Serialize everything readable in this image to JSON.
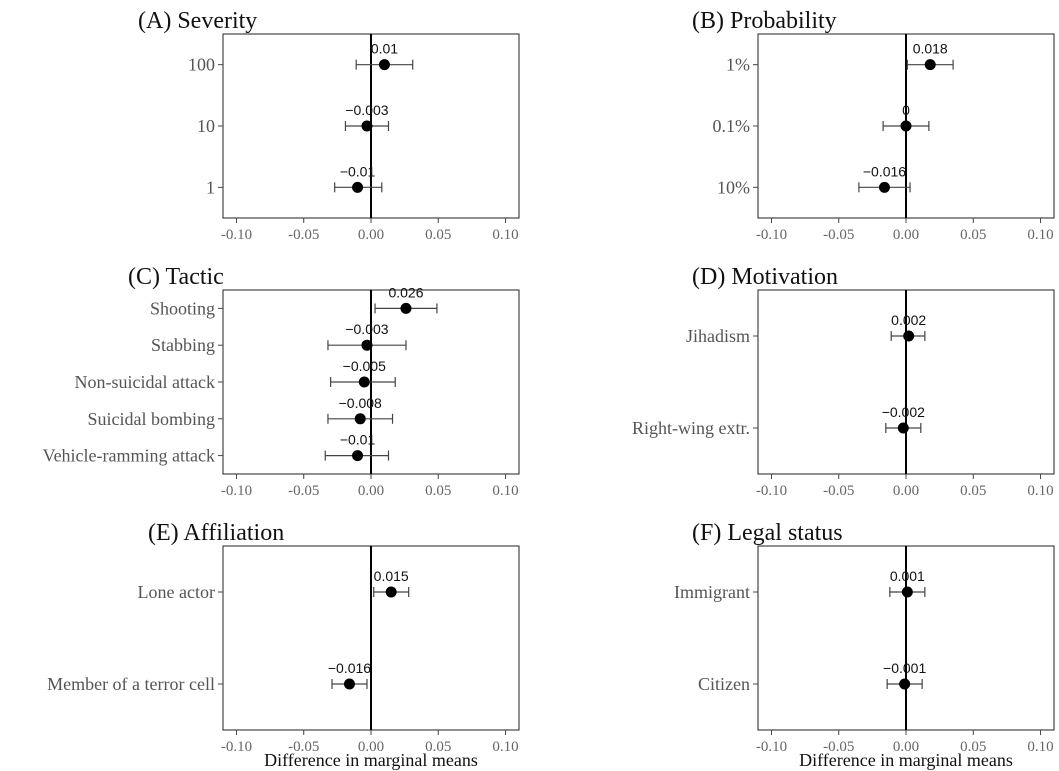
{
  "chart_data": [
    {
      "type": "scatter",
      "title": "(A) Severity",
      "xlabel": "",
      "xlim": [
        -0.11,
        0.11
      ],
      "xticks": [
        -0.1,
        -0.05,
        0.0,
        0.05,
        0.1
      ],
      "xtick_labels": [
        "-0.10",
        "-0.05",
        "0.00",
        "0.05",
        "0.10"
      ],
      "categories": [
        "100",
        "10",
        "1"
      ],
      "values": [
        0.01,
        -0.003,
        -0.01
      ],
      "ci_low": [
        -0.011,
        -0.019,
        -0.027
      ],
      "ci_high": [
        0.031,
        0.013,
        0.008
      ],
      "value_labels": [
        "0.01",
        "−0.003",
        "−0.01"
      ]
    },
    {
      "type": "scatter",
      "title": "(B) Probability",
      "xlabel": "",
      "xlim": [
        -0.11,
        0.11
      ],
      "xticks": [
        -0.1,
        -0.05,
        0.0,
        0.05,
        0.1
      ],
      "xtick_labels": [
        "-0.10",
        "-0.05",
        "0.00",
        "0.05",
        "0.10"
      ],
      "categories": [
        "1%",
        "0.1%",
        "10%"
      ],
      "values": [
        0.018,
        0.0,
        -0.016
      ],
      "ci_low": [
        0.001,
        -0.017,
        -0.035
      ],
      "ci_high": [
        0.035,
        0.017,
        0.003
      ],
      "value_labels": [
        "0.018",
        "0",
        "−0.016"
      ]
    },
    {
      "type": "scatter",
      "title": "(C) Tactic",
      "xlabel": "",
      "xlim": [
        -0.11,
        0.11
      ],
      "xticks": [
        -0.1,
        -0.05,
        0.0,
        0.05,
        0.1
      ],
      "xtick_labels": [
        "-0.10",
        "-0.05",
        "0.00",
        "0.05",
        "0.10"
      ],
      "categories": [
        "Shooting",
        "Stabbing",
        "Non-suicidal attack",
        "Suicidal bombing",
        "Vehicle-ramming attack"
      ],
      "values": [
        0.026,
        -0.003,
        -0.005,
        -0.008,
        -0.01
      ],
      "ci_low": [
        0.003,
        -0.032,
        -0.03,
        -0.032,
        -0.034
      ],
      "ci_high": [
        0.049,
        0.026,
        0.018,
        0.016,
        0.013
      ],
      "value_labels": [
        "0.026",
        "−0.003",
        "−0.005",
        "−0.008",
        "−0.01"
      ]
    },
    {
      "type": "scatter",
      "title": "(D) Motivation",
      "xlabel": "",
      "xlim": [
        -0.11,
        0.11
      ],
      "xticks": [
        -0.1,
        -0.05,
        0.0,
        0.05,
        0.1
      ],
      "xtick_labels": [
        "-0.10",
        "-0.05",
        "0.00",
        "0.05",
        "0.10"
      ],
      "categories": [
        "Jihadism",
        "Right-wing extr."
      ],
      "values": [
        0.002,
        -0.002
      ],
      "ci_low": [
        -0.011,
        -0.015
      ],
      "ci_high": [
        0.014,
        0.011
      ],
      "value_labels": [
        "0.002",
        "−0.002"
      ]
    },
    {
      "type": "scatter",
      "title": "(E) Affiliation",
      "xlabel": "Difference in marginal means",
      "xlim": [
        -0.11,
        0.11
      ],
      "xticks": [
        -0.1,
        -0.05,
        0.0,
        0.05,
        0.1
      ],
      "xtick_labels": [
        "-0.10",
        "-0.05",
        "0.00",
        "0.05",
        "0.10"
      ],
      "categories": [
        "Lone actor",
        "Member of a terror cell"
      ],
      "values": [
        0.015,
        -0.016
      ],
      "ci_low": [
        0.002,
        -0.029
      ],
      "ci_high": [
        0.028,
        -0.003
      ],
      "value_labels": [
        "0.015",
        "−0.016"
      ]
    },
    {
      "type": "scatter",
      "title": "(F) Legal status",
      "xlabel": "Difference in marginal means",
      "xlim": [
        -0.11,
        0.11
      ],
      "xticks": [
        -0.1,
        -0.05,
        0.0,
        0.05,
        0.1
      ],
      "xtick_labels": [
        "-0.10",
        "-0.05",
        "0.00",
        "0.05",
        "0.10"
      ],
      "categories": [
        "Immigrant",
        "Citizen"
      ],
      "values": [
        0.001,
        -0.001
      ],
      "ci_low": [
        -0.012,
        -0.014
      ],
      "ci_high": [
        0.014,
        0.012
      ],
      "value_labels": [
        "0.001",
        "−0.001"
      ]
    }
  ]
}
